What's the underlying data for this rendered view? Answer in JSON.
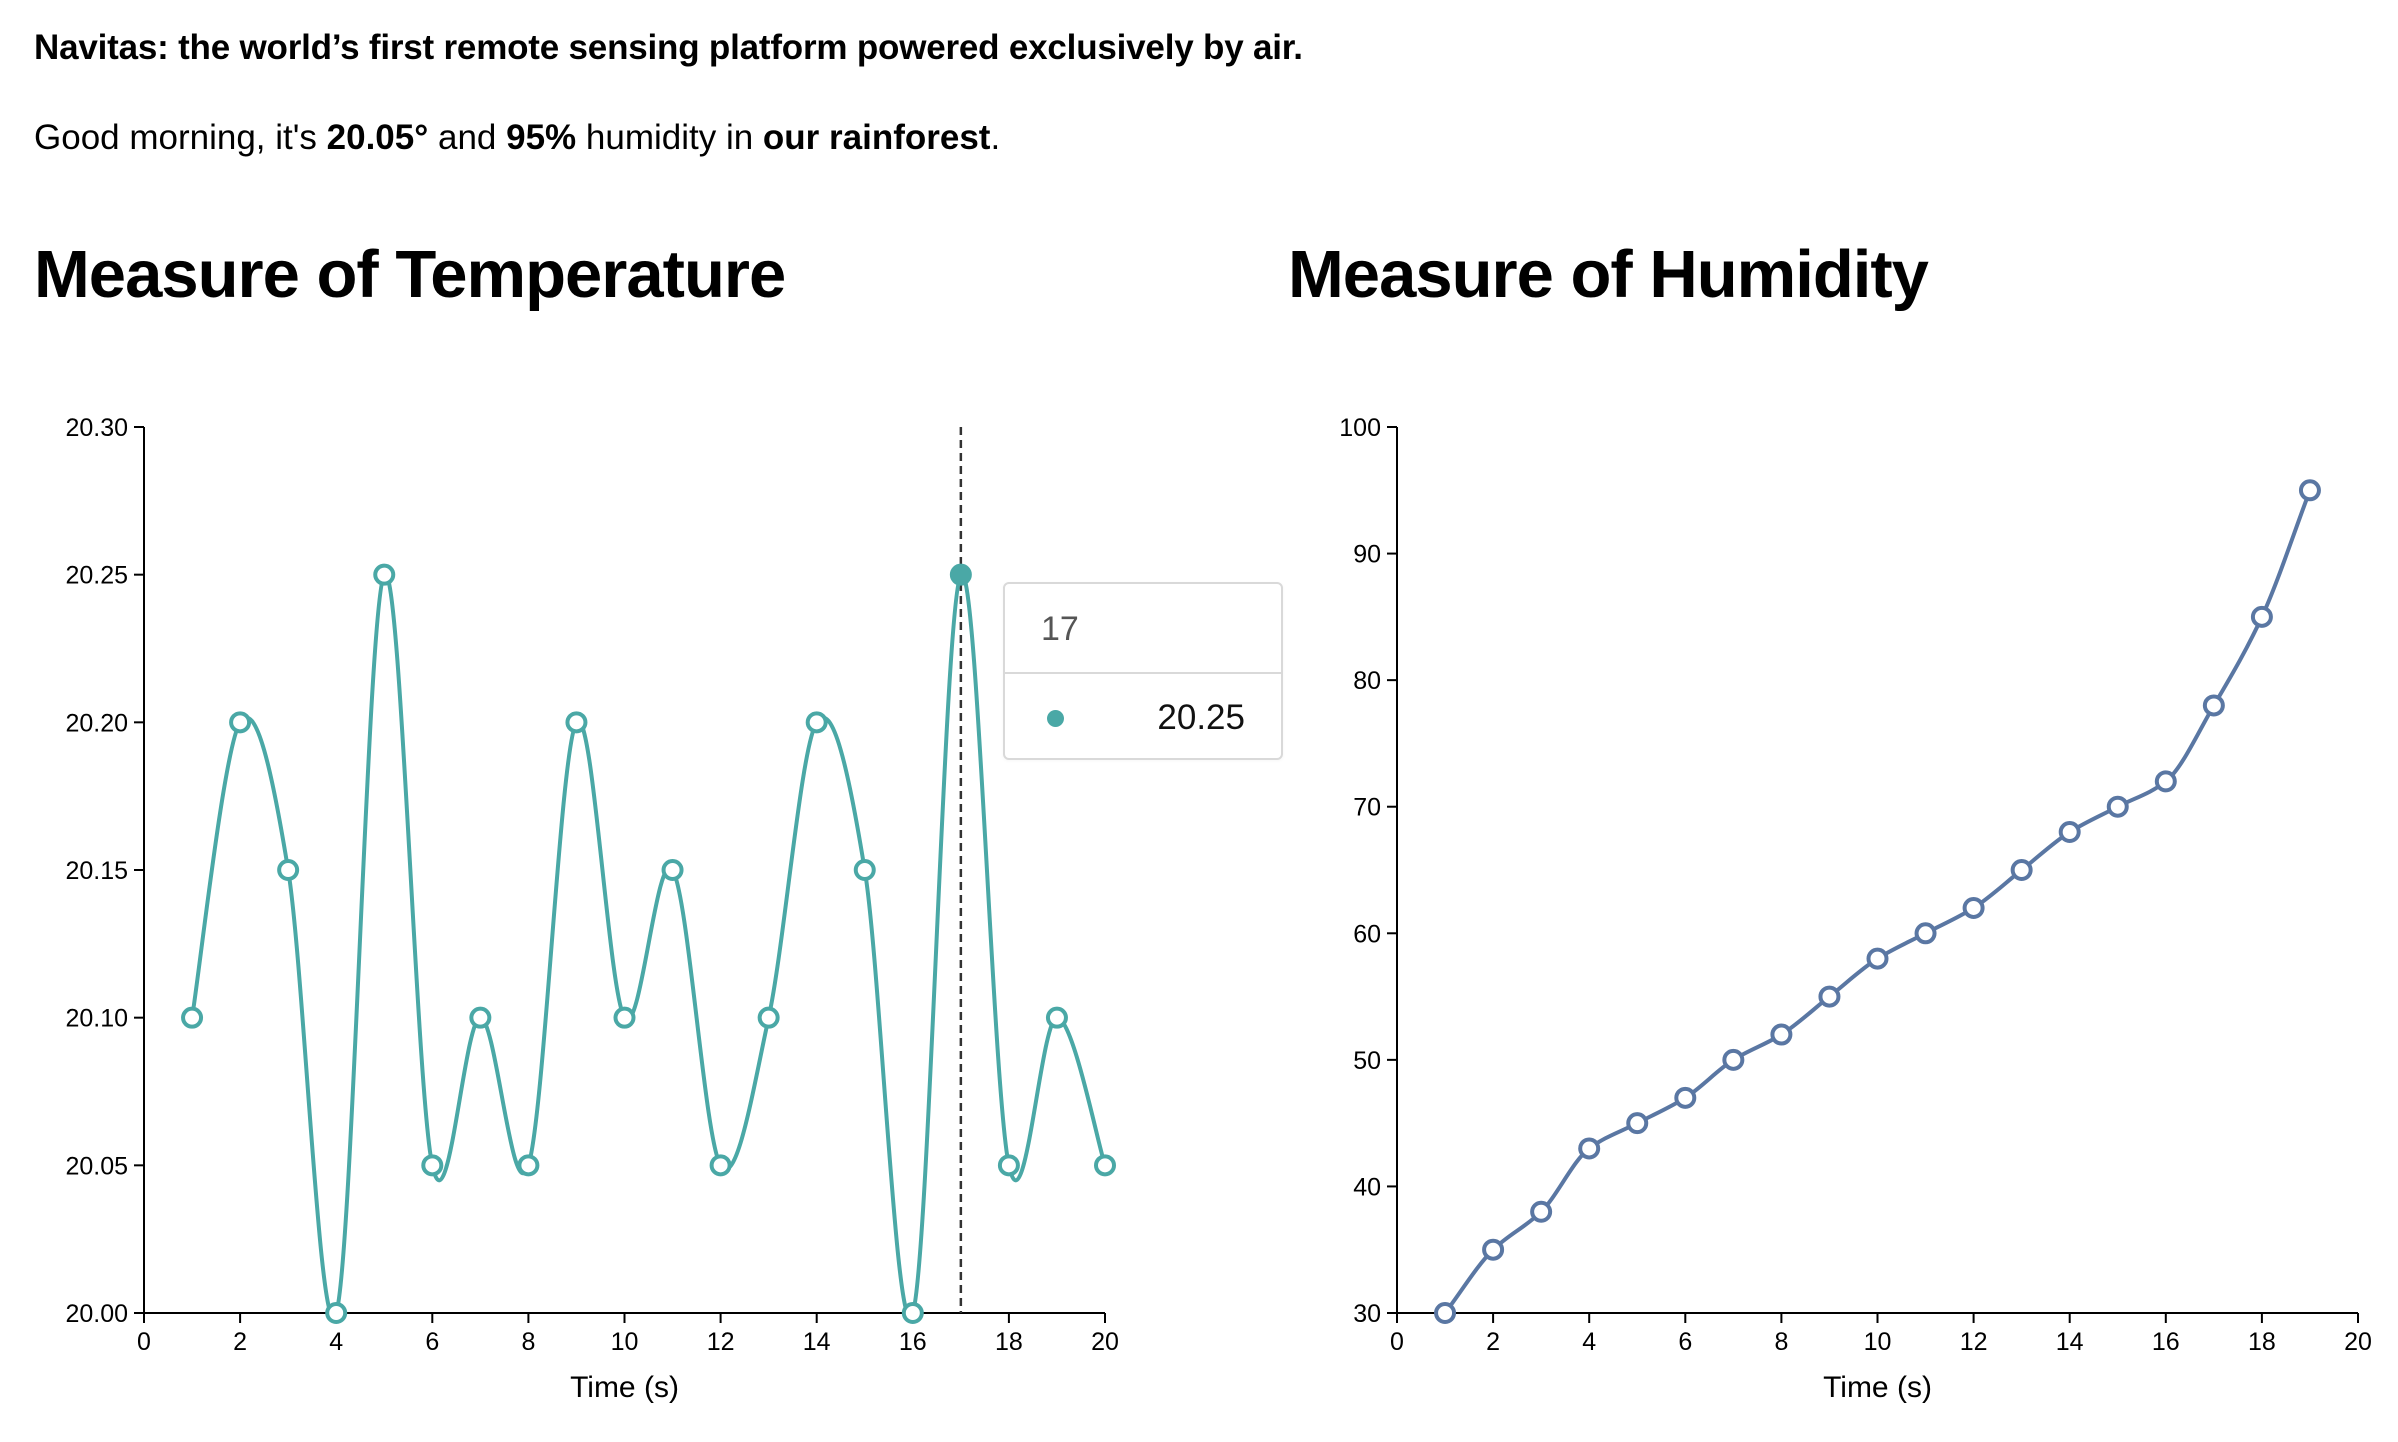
{
  "header": {
    "tagline": "Navitas: the world’s first remote sensing platform powered exclusively by air.",
    "greeting": {
      "prefix": "Good morning, it's ",
      "temperature": "20.05°",
      "mid1": " and ",
      "humidity": "95%",
      "mid2": " humidity in ",
      "location": "our rainforest",
      "suffix": "."
    }
  },
  "colors": {
    "temperature_series": "#4aa8a6",
    "humidity_series": "#5a77a3",
    "hover_line": "#333333"
  },
  "tooltip": {
    "label": "17",
    "value": "20.25"
  },
  "chart_data": [
    {
      "type": "line",
      "title": "Measure of Temperature",
      "xlabel": "Time (s)",
      "ylabel": "",
      "xlim": [
        0,
        20
      ],
      "ylim": [
        20.0,
        20.3
      ],
      "x_ticks": [
        "0",
        "2",
        "4",
        "6",
        "8",
        "10",
        "12",
        "14",
        "16",
        "18",
        "20"
      ],
      "y_ticks": [
        "20.00",
        "20.05",
        "20.10",
        "20.15",
        "20.20",
        "20.25",
        "20.30"
      ],
      "curve": "smooth",
      "grid": false,
      "hover_x": 17,
      "series": [
        {
          "x": [
            1,
            2,
            3,
            4,
            5,
            6,
            7,
            8,
            9,
            10,
            11,
            12,
            13,
            14,
            15,
            16,
            17,
            18,
            19,
            20
          ],
          "values": [
            20.1,
            20.2,
            20.15,
            20.0,
            20.25,
            20.05,
            20.1,
            20.05,
            20.2,
            20.1,
            20.15,
            20.05,
            20.1,
            20.2,
            20.15,
            20.0,
            20.25,
            20.05,
            20.1,
            20.05
          ]
        }
      ]
    },
    {
      "type": "line",
      "title": "Measure of Humidity",
      "xlabel": "Time (s)",
      "ylabel": "",
      "xlim": [
        0,
        20
      ],
      "ylim": [
        30,
        100
      ],
      "x_ticks": [
        "0",
        "2",
        "4",
        "6",
        "8",
        "10",
        "12",
        "14",
        "16",
        "18",
        "20"
      ],
      "y_ticks": [
        "30",
        "40",
        "50",
        "60",
        "70",
        "80",
        "90",
        "100"
      ],
      "curve": "smooth",
      "grid": false,
      "series": [
        {
          "x": [
            1,
            2,
            3,
            4,
            5,
            6,
            7,
            8,
            9,
            10,
            11,
            12,
            13,
            14,
            15,
            16,
            17,
            18,
            19
          ],
          "values": [
            30,
            35,
            38,
            43,
            45,
            47,
            50,
            52,
            55,
            58,
            60,
            62,
            65,
            68,
            70,
            72,
            78,
            85,
            95
          ]
        }
      ]
    }
  ]
}
